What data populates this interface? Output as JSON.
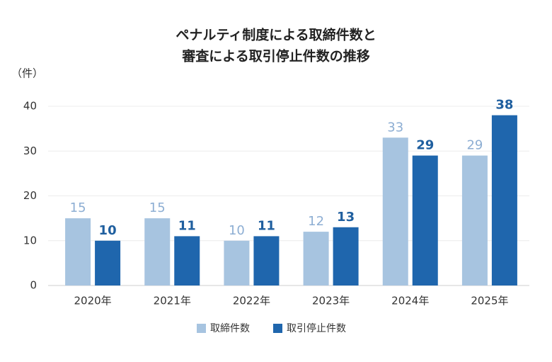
{
  "chart_data": {
    "type": "bar",
    "title": [
      "ペナルティ制度による取締件数と",
      "審査による取引停止件数の推移"
    ],
    "y_axis_label": "（件）",
    "categories": [
      "2020年",
      "2021年",
      "2022年",
      "2023年",
      "2024年",
      "2025年"
    ],
    "series": [
      {
        "name": "取締件数",
        "color": "#a7c4e0",
        "label_color": "#8daed3",
        "values": [
          15,
          15,
          10,
          12,
          33,
          29
        ]
      },
      {
        "name": "取引停止件数",
        "color": "#1f66ad",
        "label_color": "#1f5f9f",
        "values": [
          10,
          11,
          11,
          13,
          29,
          38
        ]
      }
    ],
    "ylim": [
      0,
      40
    ],
    "yticks": [
      0,
      10,
      20,
      30,
      40
    ],
    "grid": true
  }
}
